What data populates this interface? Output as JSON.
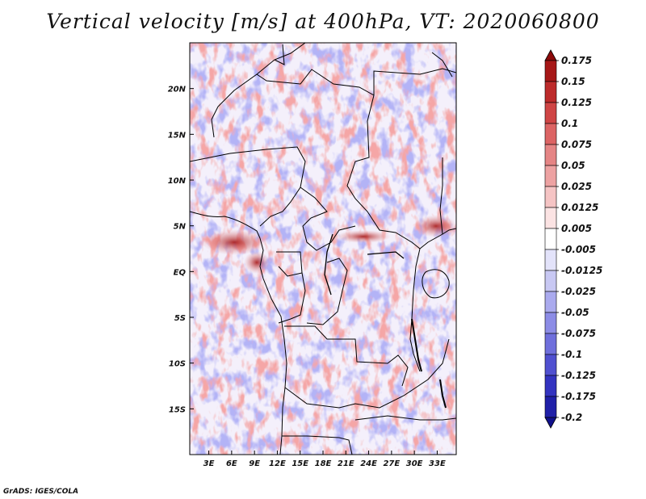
{
  "chart_data": {
    "type": "heatmap",
    "title": "Vertical velocity [m/s] at 400hPa, VT: 2020060800",
    "variable": "Vertical velocity",
    "units": "m/s",
    "level": "400hPa",
    "valid_time": "2020060800",
    "x_ticks": [
      "3E",
      "6E",
      "9E",
      "12E",
      "15E",
      "18E",
      "21E",
      "24E",
      "27E",
      "30E",
      "33E"
    ],
    "x_values": [
      3,
      6,
      9,
      12,
      15,
      18,
      21,
      24,
      27,
      30,
      33
    ],
    "y_ticks": [
      "20N",
      "15N",
      "10N",
      "5N",
      "EQ",
      "5S",
      "10S",
      "15S"
    ],
    "y_values": [
      20,
      15,
      10,
      5,
      0,
      -5,
      -10,
      -15
    ],
    "xlim": [
      0.5,
      35.5
    ],
    "ylim": [
      -20,
      25
    ],
    "colorbar": {
      "labels": [
        "0.175",
        "0.15",
        "0.125",
        "0.1",
        "0.075",
        "0.05",
        "0.025",
        "0.0125",
        "0.005",
        "-0.005",
        "-0.0125",
        "-0.025",
        "-0.05",
        "-0.075",
        "-0.1",
        "-0.125",
        "-0.175",
        "-0.2"
      ],
      "values": [
        0.175,
        0.15,
        0.125,
        0.1,
        0.075,
        0.05,
        0.025,
        0.0125,
        0.005,
        -0.005,
        -0.0125,
        -0.025,
        -0.05,
        -0.075,
        -0.1,
        -0.125,
        -0.175,
        -0.2
      ],
      "colors": [
        "#8c0a0a",
        "#a61717",
        "#bd2b2b",
        "#cf4545",
        "#dc6464",
        "#e58585",
        "#eda2a2",
        "#f5c4c4",
        "#fbe3e3",
        "#ffffff",
        "#e3e3fa",
        "#c8c8f3",
        "#aaaaee",
        "#8c8ce6",
        "#6f6fdc",
        "#5050d0",
        "#3333c0",
        "#2020a8",
        "#10108c"
      ]
    }
  },
  "footer": {
    "credit": "GrADS: IGES/COLA"
  }
}
